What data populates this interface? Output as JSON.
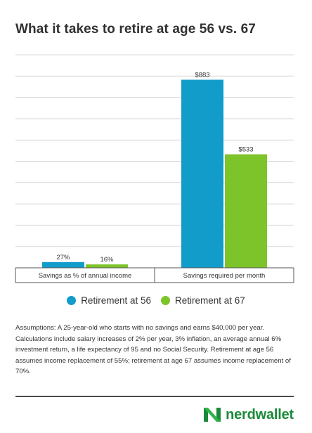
{
  "chart_data": {
    "type": "bar",
    "title": "What it takes to retire at age 56 vs. 67",
    "categories": [
      "Savings as % of annual income",
      "Savings required per month"
    ],
    "series": [
      {
        "name": "Retirement at 56",
        "color": "#119cca",
        "values": [
          27,
          883
        ],
        "labels": [
          "27%",
          "$883"
        ]
      },
      {
        "name": "Retirement at 67",
        "color": "#7dc42b",
        "values": [
          16,
          533
        ],
        "labels": [
          "16%",
          "$533"
        ]
      }
    ],
    "ylim": [
      0,
      1000
    ],
    "grid": true,
    "legend_position": "bottom"
  },
  "notes": "Assumptions: A 25-year-old who starts with no savings and earns $40,000 per year. Calculations include salary increases of 2% per year,  3% inflation, an average annual 6% investment return, a life expectancy of 95 and no Social Security. Retirement at age 56 assumes income replacement of 55%; retirement at age 67 assumes income replacement of 70%.",
  "brand": {
    "name": "nerdwallet",
    "logo_icon": "nerdwallet-n-logo-icon",
    "color": "#1a8a3a"
  }
}
